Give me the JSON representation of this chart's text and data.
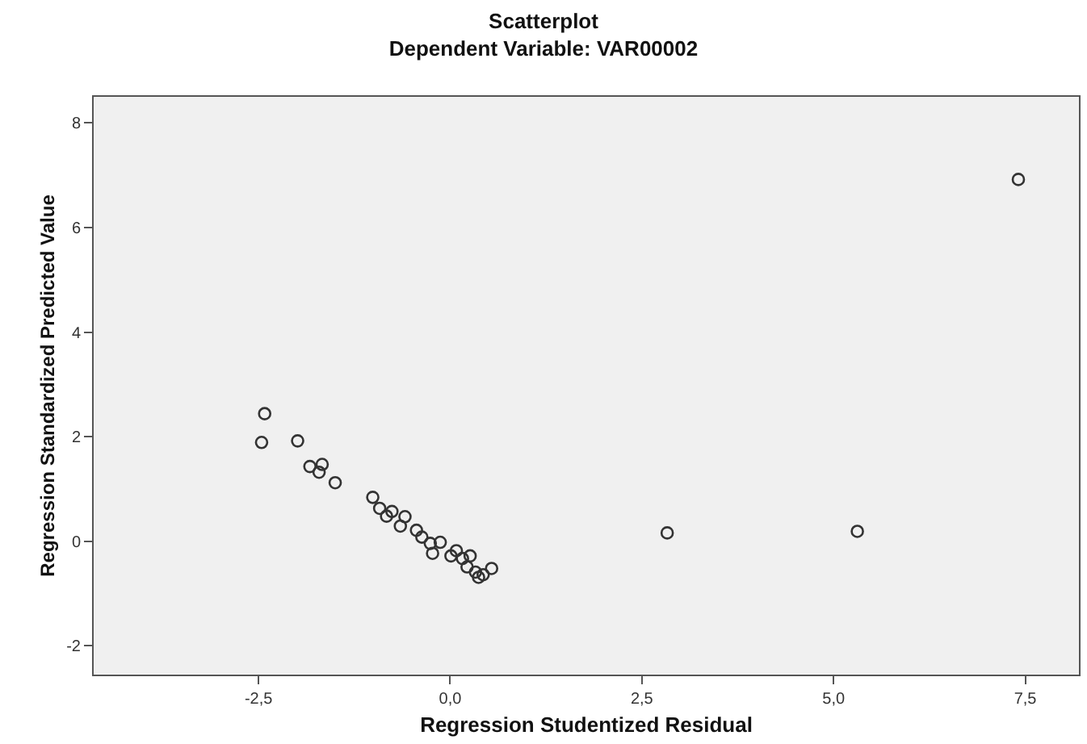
{
  "chart_data": {
    "type": "scatter",
    "title": "Scatterplot",
    "subtitle": "Dependent Variable: VAR00002",
    "xlabel": "Regression Studentized Residual",
    "ylabel": "Regression Standardized Predicted Value",
    "x": [
      7.41,
      2.83,
      5.31,
      -2.42,
      -2.46,
      -1.99,
      -1.83,
      -1.67,
      -1.71,
      -1.5,
      -1.01,
      -0.92,
      -0.76,
      -0.59,
      -0.83,
      -0.65,
      -0.44,
      -0.37,
      -0.26,
      -0.13,
      -0.23,
      0.01,
      0.08,
      0.16,
      0.26,
      0.22,
      0.33,
      0.37,
      0.43,
      0.54
    ],
    "values": [
      6.92,
      0.16,
      0.19,
      2.44,
      1.89,
      1.92,
      1.43,
      1.47,
      1.32,
      1.12,
      0.84,
      0.63,
      0.57,
      0.47,
      0.48,
      0.29,
      0.21,
      0.08,
      -0.04,
      -0.02,
      -0.23,
      -0.28,
      -0.18,
      -0.33,
      -0.28,
      -0.49,
      -0.59,
      -0.69,
      -0.64,
      -0.52
    ],
    "color": "#333333",
    "marker": "circle",
    "grid": false,
    "legend": false,
    "xlim": [
      -4.65,
      8.2
    ],
    "ylim": [
      -2.55,
      8.5
    ],
    "xticks": [
      {
        "value": -2.5,
        "label": "-2,5"
      },
      {
        "value": 0,
        "label": "0,0"
      },
      {
        "value": 2.5,
        "label": "2,5"
      },
      {
        "value": 5,
        "label": "5,0"
      },
      {
        "value": 7.5,
        "label": "7,5"
      }
    ],
    "yticks": [
      -2,
      0,
      2,
      4,
      6,
      8
    ]
  }
}
